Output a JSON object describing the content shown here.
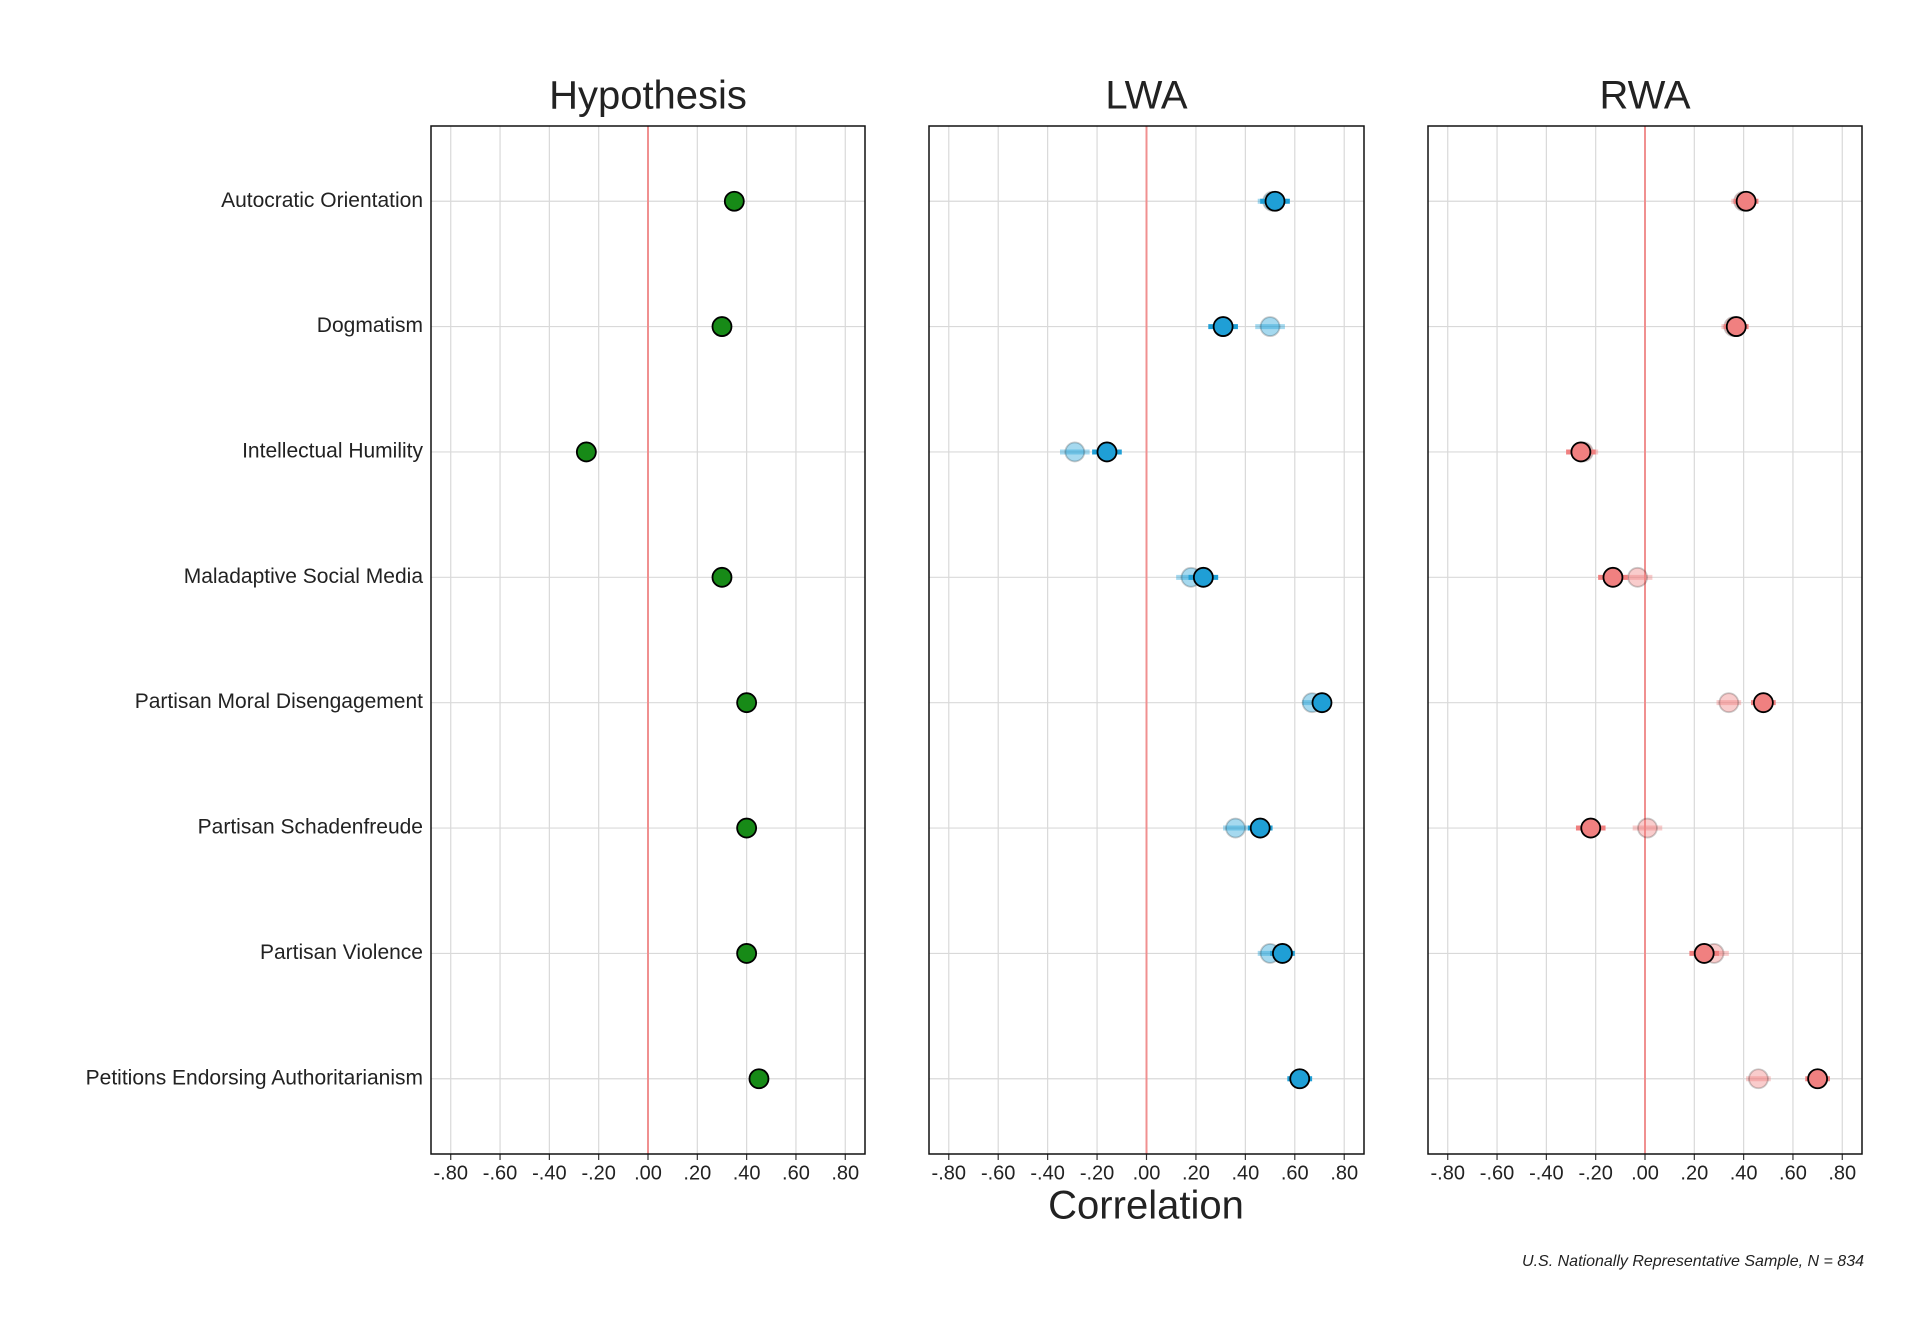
{
  "chart_data": [
    {
      "type": "dot",
      "title": "Hypothesis",
      "categories": [
        "Autocratic Orientation",
        "Dogmatism",
        "Intellectual Humility",
        "Maladaptive Social Media",
        "Partisan Moral Disengagement",
        "Partisan Schadenfreude",
        "Partisan Violence",
        "Petitions Endorsing Authoritarianism"
      ],
      "series": [
        {
          "color": "#178a17",
          "alpha": 1,
          "values": [
            0.35,
            0.3,
            -0.25,
            0.3,
            0.4,
            0.4,
            0.4,
            0.45
          ]
        }
      ],
      "xlim": [
        -0.88,
        0.88
      ],
      "xticks": [
        {
          "value": -0.8,
          "label": "-.80"
        },
        {
          "value": -0.6,
          "label": "-.60"
        },
        {
          "value": -0.4,
          "label": "-.40"
        },
        {
          "value": -0.2,
          "label": "-.20"
        },
        {
          "value": 0,
          "label": ".00"
        },
        {
          "value": 0.2,
          "label": ".20"
        },
        {
          "value": 0.4,
          "label": ".40"
        },
        {
          "value": 0.6,
          "label": ".60"
        },
        {
          "value": 0.8,
          "label": ".80"
        }
      ],
      "grid": true,
      "reference_line": 0
    },
    {
      "type": "dot",
      "title": "LWA",
      "series": [
        {
          "color": "#1f9fd6",
          "alpha": 1,
          "values": [
            0.52,
            0.31,
            -0.16,
            0.23,
            0.71,
            0.46,
            0.55,
            0.62
          ],
          "errors": [
            0.06,
            0.06,
            0.06,
            0.06,
            0.04,
            0.05,
            0.05,
            0.05
          ]
        },
        {
          "color": "#1f9fd6",
          "alpha": 0.4,
          "values": [
            0.51,
            0.5,
            -0.29,
            0.18,
            0.67,
            0.36,
            0.5,
            0.62
          ],
          "errors": [
            0.06,
            0.06,
            0.06,
            0.06,
            0.04,
            0.05,
            0.05,
            0.05
          ]
        }
      ],
      "xlim": [
        -0.88,
        0.88
      ],
      "xticks": [
        {
          "value": -0.8,
          "label": "-.80"
        },
        {
          "value": -0.6,
          "label": "-.60"
        },
        {
          "value": -0.4,
          "label": "-.40"
        },
        {
          "value": -0.2,
          "label": "-.20"
        },
        {
          "value": 0,
          "label": ".00"
        },
        {
          "value": 0.2,
          "label": ".20"
        },
        {
          "value": 0.4,
          "label": ".40"
        },
        {
          "value": 0.6,
          "label": ".60"
        },
        {
          "value": 0.8,
          "label": ".80"
        }
      ],
      "grid": true,
      "reference_line": 0
    },
    {
      "type": "dot",
      "title": "RWA",
      "series": [
        {
          "color": "#f08080",
          "alpha": 1,
          "values": [
            0.41,
            0.37,
            -0.26,
            -0.13,
            0.48,
            -0.22,
            0.24,
            0.7
          ],
          "errors": [
            0.05,
            0.05,
            0.06,
            0.06,
            0.05,
            0.06,
            0.06,
            0.05
          ]
        },
        {
          "color": "#f08080",
          "alpha": 0.4,
          "values": [
            0.4,
            0.36,
            -0.25,
            -0.03,
            0.34,
            0.01,
            0.28,
            0.46
          ],
          "errors": [
            0.05,
            0.05,
            0.06,
            0.06,
            0.05,
            0.06,
            0.06,
            0.05
          ]
        }
      ],
      "xlim": [
        -0.88,
        0.88
      ],
      "xticks": [
        {
          "value": -0.8,
          "label": "-.80"
        },
        {
          "value": -0.6,
          "label": "-.60"
        },
        {
          "value": -0.4,
          "label": "-.40"
        },
        {
          "value": -0.2,
          "label": "-.20"
        },
        {
          "value": 0,
          "label": ".00"
        },
        {
          "value": 0.2,
          "label": ".20"
        },
        {
          "value": 0.4,
          "label": ".40"
        },
        {
          "value": 0.6,
          "label": ".60"
        },
        {
          "value": 0.8,
          "label": ".80"
        }
      ],
      "grid": true,
      "reference_line": 0
    }
  ],
  "xlabel": "Correlation",
  "note": "U.S. Nationally Representative Sample, N = 834"
}
